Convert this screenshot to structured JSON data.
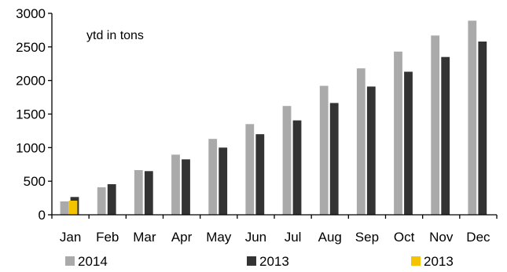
{
  "chart_data": {
    "type": "bar",
    "title": "",
    "xlabel": "",
    "ylabel": "",
    "annotation": "ytd in tons",
    "categories": [
      "Jan",
      "Feb",
      "Mar",
      "Apr",
      "May",
      "Jun",
      "Jul",
      "Aug",
      "Sep",
      "Oct",
      "Nov",
      "Dec"
    ],
    "y_ticks": [
      "0",
      "500",
      "1000",
      "1500",
      "2000",
      "2500",
      "3000"
    ],
    "ylim": [
      0,
      3000
    ],
    "grid": false,
    "legend_position": "bottom",
    "series": [
      {
        "name": "2014",
        "color": "#aaaaaa",
        "values": [
          200,
          410,
          665,
          895,
          1130,
          1350,
          1620,
          1920,
          2180,
          2430,
          2670,
          2890
        ]
      },
      {
        "name": "2013",
        "color": "#333333",
        "values": [
          265,
          455,
          650,
          825,
          1000,
          1200,
          1405,
          1665,
          1910,
          2130,
          2350,
          2580
        ]
      },
      {
        "name": "2013",
        "color": "#f5c400",
        "values": [
          210,
          null,
          null,
          null,
          null,
          null,
          null,
          null,
          null,
          null,
          null,
          null
        ]
      }
    ]
  }
}
